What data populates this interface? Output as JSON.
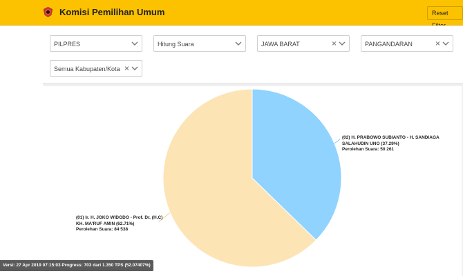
{
  "header": {
    "title": "Komisi Pemilihan Umum",
    "reset_label": "Reset Filter",
    "logo_icon": "kpu-garuda-logo-icon"
  },
  "filters": {
    "election": "PILPRES",
    "mode": "Hitung Suara",
    "province": "JAWA BARAT",
    "regency": "PANGANDARAN",
    "district": "Semua Kabupaten/Kota"
  },
  "chart_data": {
    "type": "pie",
    "slices": [
      {
        "label_line1": "(02) H. PRABOWO SUBIANTO - H. SANDIAGA",
        "label_line2": "SALAHUDIN UNO (37.29%)",
        "votes_label": "Perolehan Suara: 50 261",
        "percent": 37.29,
        "votes": 50261,
        "color": "#8fd3fe"
      },
      {
        "label_line1": "(01) Ir. H. JOKO WIDODO - Prof. Dr. (H.C)",
        "label_line2": "KH. MA'RUF AMIN (62.71%)",
        "votes_label": "Perolehan Suara: 84 538",
        "percent": 62.71,
        "votes": 84538,
        "color": "#fde4b5"
      }
    ]
  },
  "status": {
    "text": "Versi: 27 Apr 2019 07:15:03 Progress: 703 dari 1.350 TPS (52.07407%)"
  },
  "colors": {
    "accent": "#fcc200",
    "slice_02": "#8fd3fe",
    "slice_01": "#fde4b5"
  }
}
